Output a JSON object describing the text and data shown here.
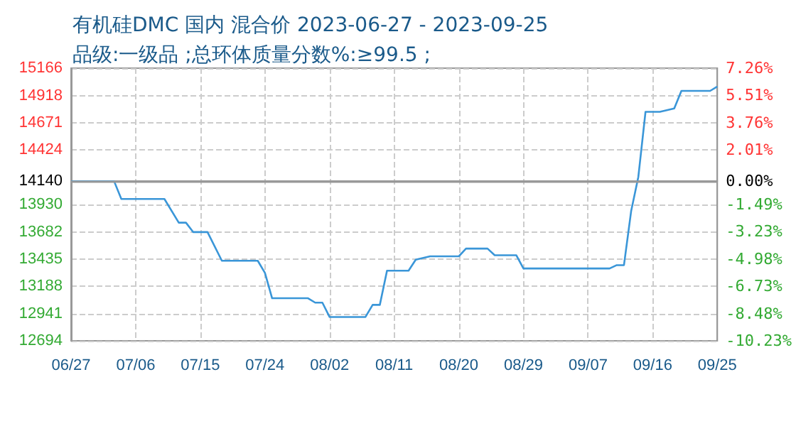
{
  "chart_data": {
    "type": "line",
    "title": "有机硅DMC 国内 混合价 2023-06-27 - 2023-09-25",
    "subtitle": "品级:一级品 ;总环体质量分数%:≥99.5 ;",
    "x": [
      "2023-06-27",
      "2023-07-03",
      "2023-07-04",
      "2023-07-10",
      "2023-07-12",
      "2023-07-13",
      "2023-07-14",
      "2023-07-16",
      "2023-07-18",
      "2023-07-23",
      "2023-07-24",
      "2023-07-25",
      "2023-07-30",
      "2023-07-31",
      "2023-08-01",
      "2023-08-02",
      "2023-08-07",
      "2023-08-08",
      "2023-08-09",
      "2023-08-10",
      "2023-08-13",
      "2023-08-14",
      "2023-08-16",
      "2023-08-20",
      "2023-08-21",
      "2023-08-24",
      "2023-08-25",
      "2023-08-28",
      "2023-08-29",
      "2023-09-10",
      "2023-09-11",
      "2023-09-12",
      "2023-09-13",
      "2023-09-14",
      "2023-09-15",
      "2023-09-17",
      "2023-09-19",
      "2023-09-20",
      "2023-09-24",
      "2023-09-25"
    ],
    "series": [
      {
        "color": "#3a96d8",
        "values": [
          14140,
          14140,
          13980,
          13980,
          13765,
          13765,
          13680,
          13680,
          13420,
          13420,
          13310,
          13080,
          13080,
          13040,
          13040,
          12910,
          12910,
          13020,
          13020,
          13330,
          13330,
          13430,
          13460,
          13460,
          13530,
          13530,
          13470,
          13470,
          13350,
          13350,
          13380,
          13380,
          13870,
          14180,
          14770,
          14770,
          14800,
          14960,
          14960,
          15000
        ]
      }
    ],
    "xlim": [
      "2023-06-27",
      "2023-09-25"
    ],
    "xticks": [
      {
        "value": "2023-06-27",
        "label": "06/27"
      },
      {
        "value": "2023-07-06",
        "label": "07/06"
      },
      {
        "value": "2023-07-15",
        "label": "07/15"
      },
      {
        "value": "2023-07-24",
        "label": "07/24"
      },
      {
        "value": "2023-08-02",
        "label": "08/02"
      },
      {
        "value": "2023-08-11",
        "label": "08/11"
      },
      {
        "value": "2023-08-20",
        "label": "08/20"
      },
      {
        "value": "2023-08-29",
        "label": "08/29"
      },
      {
        "value": "2023-09-07",
        "label": "09/07"
      },
      {
        "value": "2023-09-16",
        "label": "09/16"
      },
      {
        "value": "2023-09-25",
        "label": "09/25"
      }
    ],
    "ylim": [
      12694,
      15166
    ],
    "yticks": [
      12694,
      12941,
      13188,
      13435,
      13682,
      13930,
      14140,
      14424,
      14671,
      14918,
      15166
    ],
    "y2lim": [
      -10.23,
      7.26
    ],
    "y2ticks": [
      {
        "value": -10.23,
        "label": "-10.23%"
      },
      {
        "value": -8.48,
        "label": "-8.48%"
      },
      {
        "value": -6.73,
        "label": "-6.73%"
      },
      {
        "value": -4.98,
        "label": "-4.98%"
      },
      {
        "value": -3.23,
        "label": "-3.23%"
      },
      {
        "value": -1.49,
        "label": "-1.49%"
      },
      {
        "value": 0,
        "label": "0.00%"
      },
      {
        "value": 2.01,
        "label": "2.01%"
      },
      {
        "value": 3.76,
        "label": "3.76%"
      },
      {
        "value": 5.51,
        "label": "5.51%"
      },
      {
        "value": 7.26,
        "label": "7.26%"
      }
    ],
    "ref_lines": [
      {
        "axis": "y",
        "value": 14140,
        "color": "#999999"
      }
    ],
    "grid": true,
    "marker": "none",
    "line_style": "solid"
  }
}
